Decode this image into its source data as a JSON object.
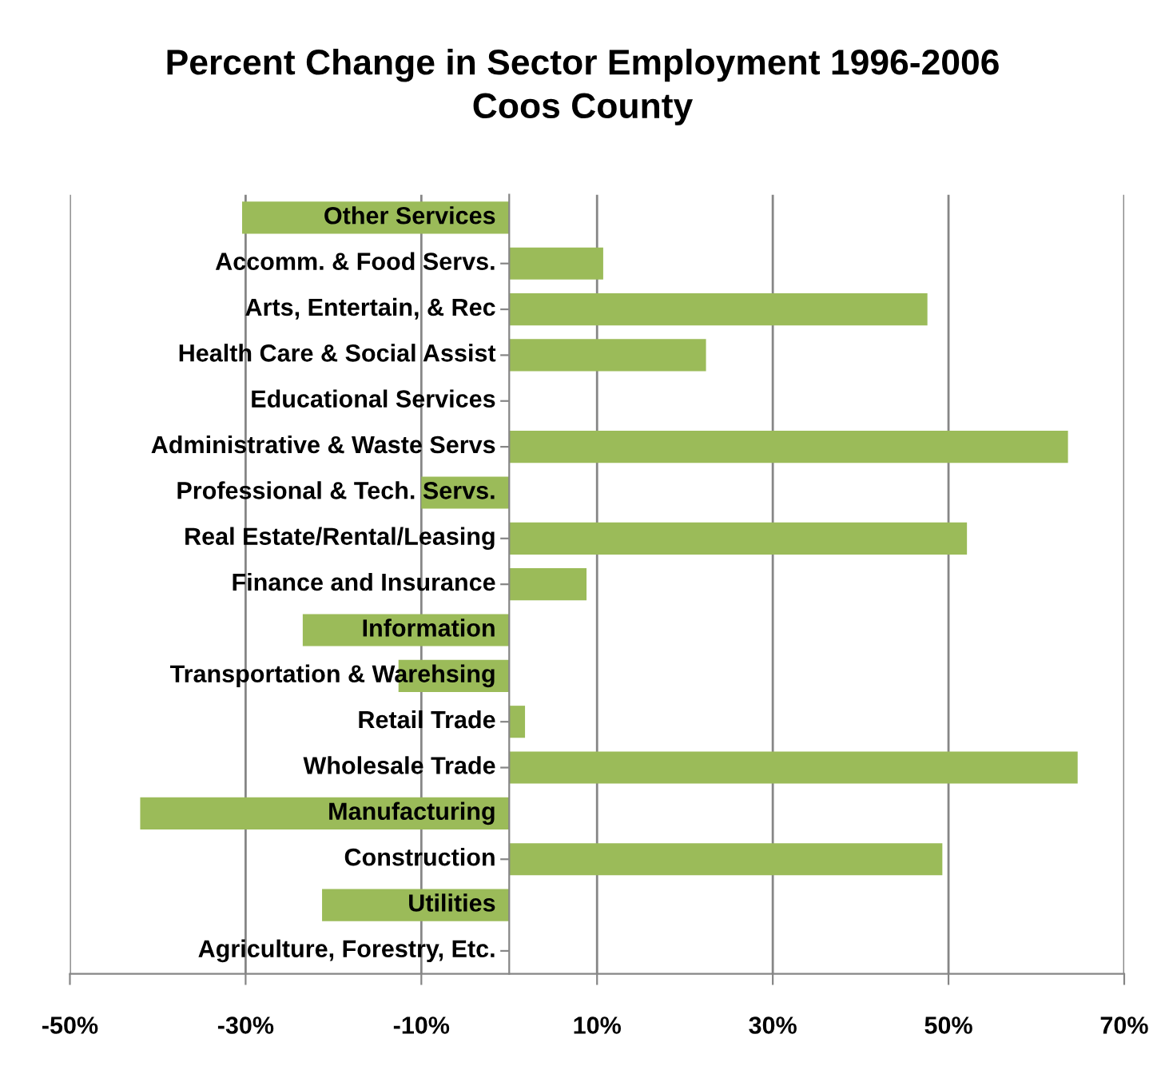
{
  "chart_data": {
    "type": "bar",
    "orientation": "horizontal",
    "title": "Percent Change in Sector Employment 1996-2006\nCoos County",
    "categories": [
      "Other Services",
      "Accomm. & Food Servs.",
      "Arts, Entertain, & Rec",
      "Health Care & Social Assist",
      "Educational Services",
      "Administrative & Waste Servs",
      "Professional & Tech. Servs.",
      "Real Estate/Rental/Leasing",
      "Finance and Insurance",
      "Information",
      "Transportation & Warehsing",
      "Retail Trade",
      "Wholesale Trade",
      "Manufacturing",
      "Construction",
      "Utilities",
      "Agriculture, Forestry, Etc."
    ],
    "values": [
      -30.4,
      10.7,
      47.6,
      22.4,
      0,
      63.6,
      -10.0,
      52.1,
      8.8,
      -23.5,
      -12.6,
      1.8,
      64.7,
      -42.0,
      49.3,
      -21.3,
      0
    ],
    "color": "#9bbb59",
    "xlim": [
      -50,
      70
    ],
    "xticks": [
      {
        "value": -50,
        "label": "-50%"
      },
      {
        "value": -30,
        "label": "-30%"
      },
      {
        "value": -10,
        "label": "-10%"
      },
      {
        "value": 10,
        "label": "10%"
      },
      {
        "value": 30,
        "label": "30%"
      },
      {
        "value": 50,
        "label": "50%"
      },
      {
        "value": 70,
        "label": "70%"
      }
    ],
    "grid": "x",
    "legend": false
  }
}
